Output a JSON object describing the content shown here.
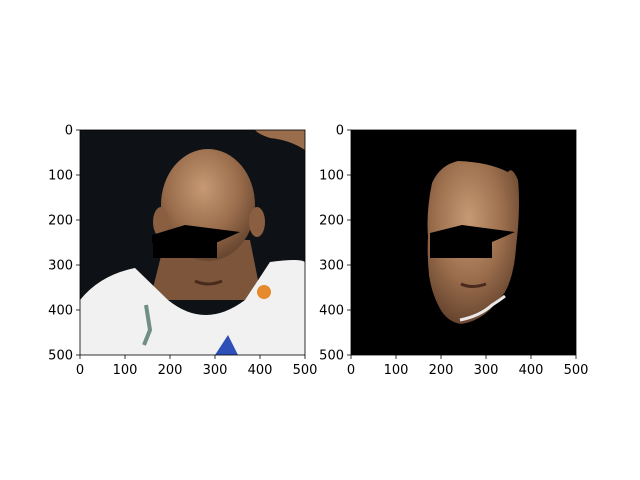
{
  "chart_data": [
    {
      "type": "image",
      "content": "photo",
      "xlim": [
        0,
        500
      ],
      "ylim": [
        500,
        0
      ],
      "xticks": [
        0,
        100,
        200,
        300,
        400,
        500
      ],
      "yticks": [
        0,
        100,
        200,
        300,
        400,
        500
      ],
      "tick_labels_x": [
        "0",
        "100",
        "200",
        "300",
        "400",
        "500"
      ],
      "tick_labels_y": [
        "0",
        "100",
        "200",
        "300",
        "400",
        "500"
      ],
      "background_color": "#0e1216",
      "skin_color": "#9a6d4c",
      "jersey_color": "#f1f1f1"
    },
    {
      "type": "image",
      "content": "segmented-face",
      "xlim": [
        0,
        500
      ],
      "ylim": [
        500,
        0
      ],
      "xticks": [
        0,
        100,
        200,
        300,
        400,
        500
      ],
      "yticks": [
        0,
        100,
        200,
        300,
        400,
        500
      ],
      "tick_labels_x": [
        "0",
        "100",
        "200",
        "300",
        "400",
        "500"
      ],
      "tick_labels_y": [
        "0",
        "100",
        "200",
        "300",
        "400",
        "500"
      ],
      "background_color": "#000000",
      "skin_color": "#9a6d4c"
    }
  ]
}
